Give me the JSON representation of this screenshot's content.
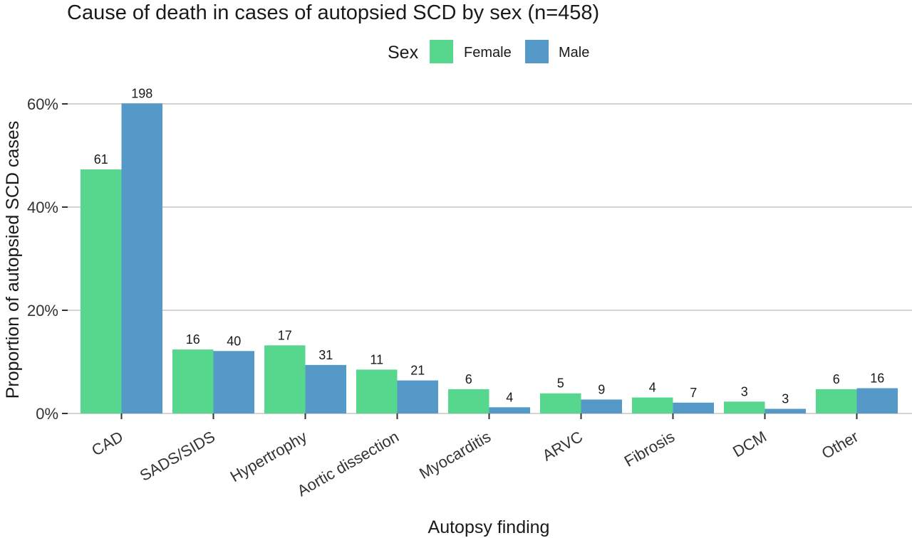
{
  "chart_data": {
    "type": "bar",
    "title": "Cause of death in cases of autopsied SCD by sex (n=458)",
    "xlabel": "Autopsy finding",
    "ylabel": "Proportion of autopsied SCD cases",
    "ylim": [
      0,
      0.6
    ],
    "y_ticks": [
      0,
      0.2,
      0.4,
      0.6
    ],
    "y_tick_labels": [
      "0%",
      "20%",
      "40%",
      "60%"
    ],
    "grid": "horizontal",
    "legend": {
      "title": "Sex",
      "position": "top"
    },
    "categories": [
      "CAD",
      "SADS/SIDS",
      "Hypertrophy",
      "Aortic dissection",
      "Myocarditis",
      "ARVC",
      "Fibrosis",
      "DCM",
      "Other"
    ],
    "series": [
      {
        "name": "Female",
        "color": "#57D68D",
        "values": [
          0.473,
          0.124,
          0.132,
          0.085,
          0.047,
          0.039,
          0.031,
          0.023,
          0.047
        ],
        "counts": [
          "61",
          "16",
          "17",
          "11",
          "6",
          "5",
          "4",
          "3",
          "6"
        ]
      },
      {
        "name": "Male",
        "color": "#5599C8",
        "values": [
          0.601,
          0.121,
          0.094,
          0.064,
          0.012,
          0.027,
          0.021,
          0.009,
          0.049
        ],
        "counts": [
          "198",
          "40",
          "31",
          "21",
          "4",
          "9",
          "7",
          "3",
          "16"
        ]
      }
    ]
  }
}
